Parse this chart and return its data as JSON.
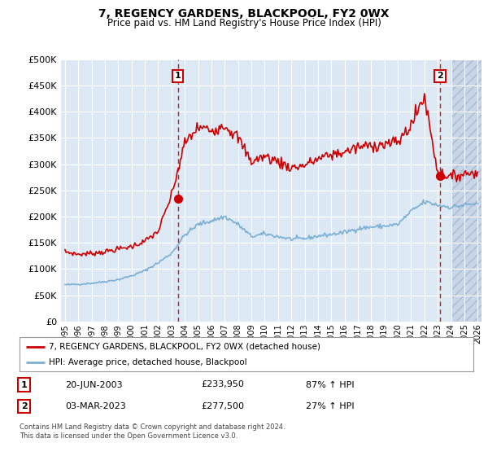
{
  "title": "7, REGENCY GARDENS, BLACKPOOL, FY2 0WX",
  "subtitle": "Price paid vs. HM Land Registry's House Price Index (HPI)",
  "legend_line1": "7, REGENCY GARDENS, BLACKPOOL, FY2 0WX (detached house)",
  "legend_line2": "HPI: Average price, detached house, Blackpool",
  "footer": "Contains HM Land Registry data © Crown copyright and database right 2024.\nThis data is licensed under the Open Government Licence v3.0.",
  "transaction1_label": "1",
  "transaction1_date": "20-JUN-2003",
  "transaction1_price": "£233,950",
  "transaction1_hpi": "87% ↑ HPI",
  "transaction1_x": 2003.47,
  "transaction1_y": 233950,
  "transaction2_label": "2",
  "transaction2_date": "03-MAR-2023",
  "transaction2_price": "£277,500",
  "transaction2_hpi": "27% ↑ HPI",
  "transaction2_x": 2023.17,
  "transaction2_y": 277500,
  "ylim": [
    0,
    500000
  ],
  "yticks": [
    0,
    50000,
    100000,
    150000,
    200000,
    250000,
    300000,
    350000,
    400000,
    450000,
    500000
  ],
  "xlim_left": 1994.7,
  "xlim_right": 2026.3,
  "hatch_start": 2024.0,
  "red_color": "#cc0000",
  "blue_color": "#7bafd4",
  "bg_color": "#dde8f5",
  "grid_color": "#ffffff",
  "dashed_color": "#cc0000",
  "marker_color": "#cc0000",
  "hatch_color": "#c8d4e8"
}
